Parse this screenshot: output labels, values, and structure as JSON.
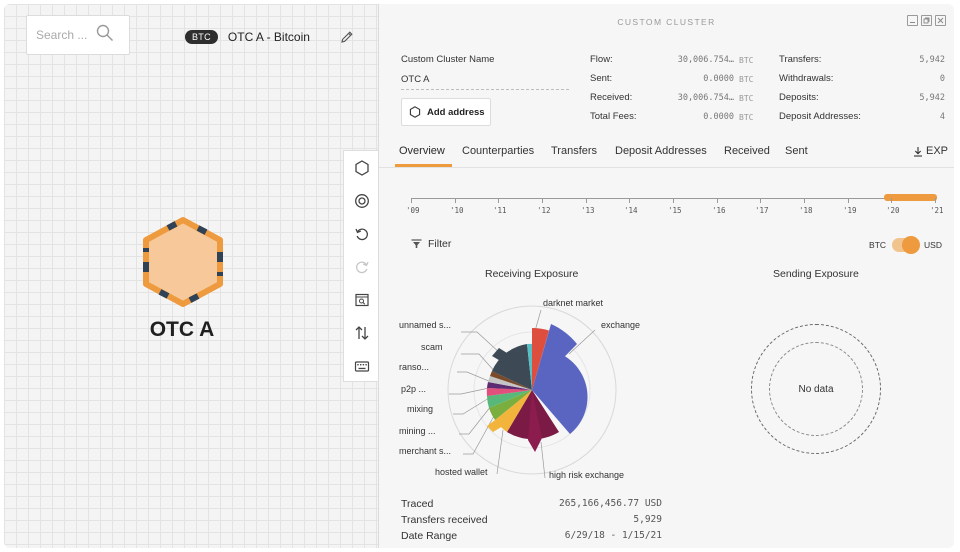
{
  "search": {
    "placeholder": "Search ..."
  },
  "graph": {
    "currency_badge": "BTC",
    "cluster_heading": "OTC A - Bitcoin",
    "node_label": "OTC A"
  },
  "panel": {
    "title": "CUSTOM CLUSTER",
    "cluster_name_label": "Custom Cluster Name",
    "cluster_name_value": "OTC A",
    "add_address_label": "Add address",
    "stats_left": [
      {
        "label": "Flow:",
        "value": "30,006.754…",
        "unit": "BTC"
      },
      {
        "label": "Sent:",
        "value": "0.0000",
        "unit": "BTC"
      },
      {
        "label": "Received:",
        "value": "30,006.754…",
        "unit": "BTC"
      },
      {
        "label": "Total Fees:",
        "value": "0.0000",
        "unit": "BTC"
      }
    ],
    "stats_right": [
      {
        "label": "Transfers:",
        "value": "5,942"
      },
      {
        "label": "Withdrawals:",
        "value": "0"
      },
      {
        "label": "Deposits:",
        "value": "5,942"
      },
      {
        "label": "Deposit Addresses:",
        "value": "4"
      }
    ],
    "tabs": [
      "Overview",
      "Counterparties",
      "Transfers",
      "Deposit Addresses",
      "Received",
      "Sent"
    ],
    "active_tab": "Overview",
    "export_label": "EXP",
    "timeline": {
      "labels": [
        "'09",
        "'10",
        "'11",
        "'12",
        "'13",
        "'14",
        "'15",
        "'16",
        "'17",
        "'18",
        "'19",
        "'20",
        "'21"
      ],
      "range_start_fraction": 0.9,
      "range_end_fraction": 1.0,
      "accent": "#ee9a3f"
    },
    "filter_label": "Filter",
    "toggle": {
      "left": "BTC",
      "right": "USD",
      "selected": "USD"
    },
    "receiving_title": "Receiving Exposure",
    "sending_title": "Sending Exposure",
    "no_data": "No data",
    "receiving_labels": [
      "darknet market",
      "exchange",
      "unnamed s...",
      "scam",
      "ranso...",
      "p2p ...",
      "mixing",
      "mining ...",
      "merchant s...",
      "hosted wallet",
      "high risk exchange"
    ],
    "summary": [
      {
        "label": "Traced",
        "value": "265,166,456.77 USD"
      },
      {
        "label": "Transfers received",
        "value": "5,929"
      },
      {
        "label": "Date Range",
        "value": "6/29/18 - 1/15/21"
      }
    ]
  },
  "colors": {
    "accent": "#ee9a3f",
    "node_fill": "#f7c99a",
    "node_border": "#ee9a3f",
    "node_segments": "#2f4256"
  }
}
